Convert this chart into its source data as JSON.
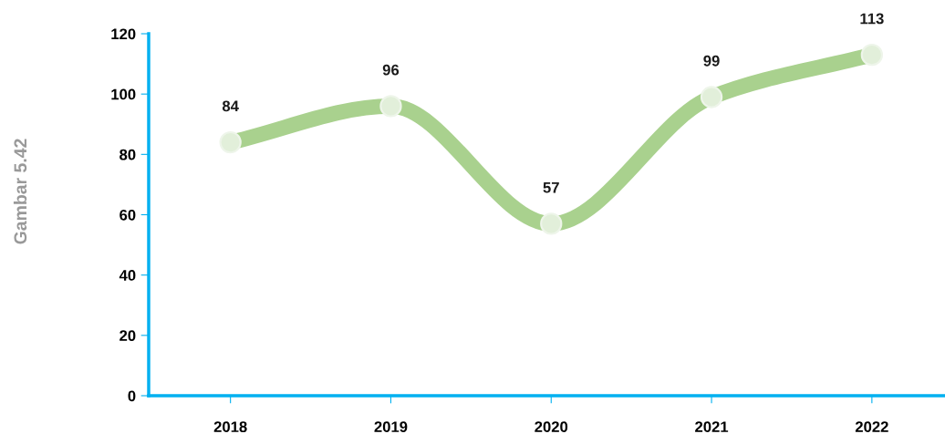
{
  "chart_data": {
    "type": "line",
    "categories": [
      "2018",
      "2019",
      "2020",
      "2021",
      "2022"
    ],
    "series": [
      {
        "color": "#a9d18e",
        "values": [
          84,
          96,
          57,
          99,
          113
        ]
      }
    ],
    "ylim": [
      0,
      120
    ],
    "yticks": [
      0,
      20,
      40,
      60,
      80,
      100,
      120
    ],
    "grid": false,
    "marker": "circle",
    "line_style": "solid",
    "data_labels": true,
    "annotations": [
      "Gambar 5.42"
    ]
  }
}
